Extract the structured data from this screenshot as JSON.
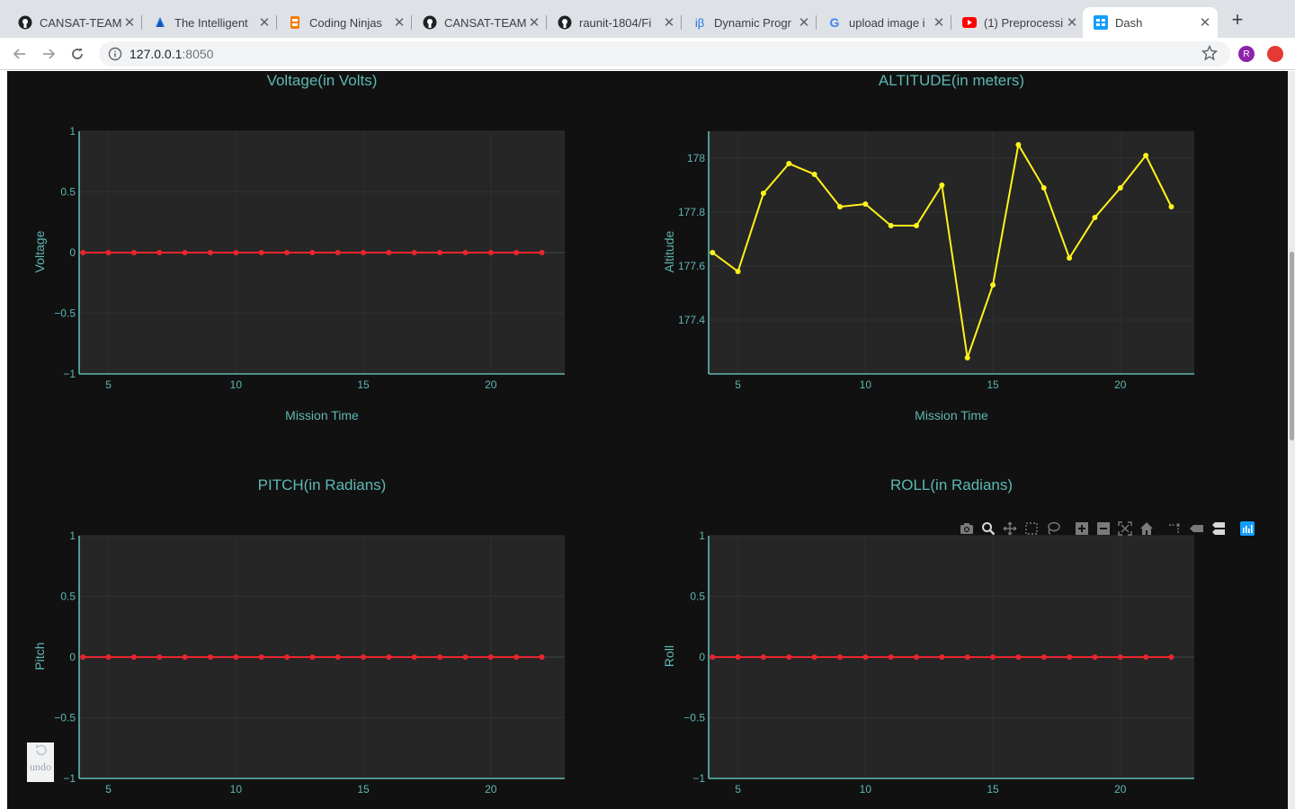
{
  "browser": {
    "tabs": [
      {
        "title": "CANSAT-TEAM",
        "icon": "github-icon"
      },
      {
        "title": "The Intelligent",
        "icon": "bookmark-icon"
      },
      {
        "title": "Coding Ninjas",
        "icon": "coding-ninjas-icon"
      },
      {
        "title": "CANSAT-TEAM",
        "icon": "github-icon"
      },
      {
        "title": "raunit-1804/Fi",
        "icon": "github-icon"
      },
      {
        "title": "Dynamic Progr",
        "icon": "beta-icon"
      },
      {
        "title": "upload image i",
        "icon": "google-icon"
      },
      {
        "title": "(1) Preprocessi",
        "icon": "youtube-icon"
      },
      {
        "title": "Dash",
        "icon": "dash-icon",
        "active": true
      }
    ],
    "url_host": "127.0.0.1",
    "url_port": ":8050",
    "profile_initial": "R"
  },
  "dashboard": {
    "undo_label": "undo",
    "modebar_icons": [
      "camera-icon",
      "zoom-icon",
      "pan-icon",
      "box-select-icon",
      "lasso-icon",
      "zoom-in-icon",
      "zoom-out-icon",
      "autoscale-icon",
      "reset-axes-icon",
      "spike-lines-icon",
      "hover-closest-icon",
      "hover-compare-icon",
      "plotly-logo-icon"
    ]
  },
  "chart_data": [
    {
      "type": "line",
      "title": "Voltage(in Volts)",
      "xlabel": "Mission Time",
      "ylabel": "Voltage",
      "x": [
        4,
        5,
        6,
        7,
        8,
        9,
        10,
        11,
        12,
        13,
        14,
        15,
        16,
        17,
        18,
        19,
        20,
        21,
        22
      ],
      "y": [
        0,
        0,
        0,
        0,
        0,
        0,
        0,
        0,
        0,
        0,
        0,
        0,
        0,
        0,
        0,
        0,
        0,
        0,
        0
      ],
      "xticks": [
        5,
        10,
        15,
        20
      ],
      "yticks": [
        "1",
        "0.5",
        "0",
        "−0.5",
        "−1"
      ],
      "ylim": [
        -1,
        1
      ],
      "color": "#e8262d"
    },
    {
      "type": "line",
      "title": "ALTITUDE(in meters)",
      "xlabel": "Mission Time",
      "ylabel": "Altitude",
      "x": [
        4,
        5,
        6,
        7,
        8,
        9,
        10,
        11,
        12,
        13,
        14,
        15,
        16,
        17,
        18,
        19,
        20,
        21,
        22
      ],
      "y": [
        177.65,
        177.58,
        177.87,
        177.98,
        177.94,
        177.82,
        177.83,
        177.75,
        177.75,
        177.9,
        177.26,
        177.53,
        178.05,
        177.89,
        177.63,
        177.78,
        177.89,
        178.01,
        177.82
      ],
      "xticks": [
        5,
        10,
        15,
        20
      ],
      "yticks": [
        "178",
        "177.8",
        "177.6",
        "177.4"
      ],
      "ylim": [
        177.2,
        178.1
      ],
      "color": "#fff31b"
    },
    {
      "type": "line",
      "title": "PITCH(in Radians)",
      "xlabel": "",
      "ylabel": "Pitch",
      "x": [
        4,
        5,
        6,
        7,
        8,
        9,
        10,
        11,
        12,
        13,
        14,
        15,
        16,
        17,
        18,
        19,
        20,
        21,
        22
      ],
      "y": [
        0,
        0,
        0,
        0,
        0,
        0,
        0,
        0,
        0,
        0,
        0,
        0,
        0,
        0,
        0,
        0,
        0,
        0,
        0
      ],
      "xticks": [
        5,
        10,
        15,
        20
      ],
      "yticks": [
        "1",
        "0.5",
        "0",
        "−0.5",
        "−1"
      ],
      "ylim": [
        -1,
        1
      ],
      "color": "#e8262d"
    },
    {
      "type": "line",
      "title": "ROLL(in Radians)",
      "xlabel": "",
      "ylabel": "Roll",
      "x": [
        4,
        5,
        6,
        7,
        8,
        9,
        10,
        11,
        12,
        13,
        14,
        15,
        16,
        17,
        18,
        19,
        20,
        21,
        22
      ],
      "y": [
        0,
        0,
        0,
        0,
        0,
        0,
        0,
        0,
        0,
        0,
        0,
        0,
        0,
        0,
        0,
        0,
        0,
        0,
        0
      ],
      "xticks": [
        5,
        10,
        15,
        20
      ],
      "yticks": [
        "1",
        "0.5",
        "0",
        "−0.5",
        "−1"
      ],
      "ylim": [
        -1,
        1
      ],
      "color": "#e8262d"
    }
  ]
}
